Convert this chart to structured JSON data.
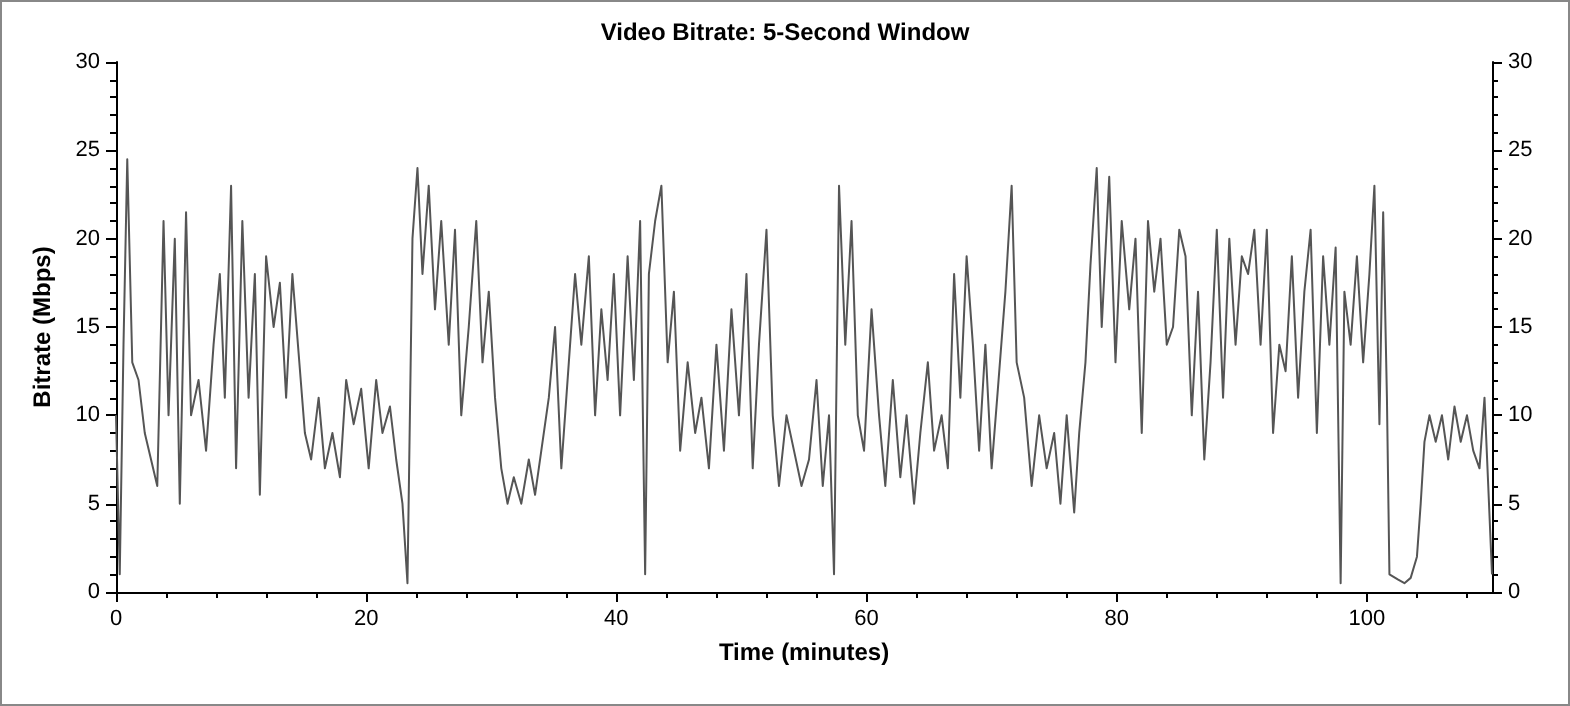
{
  "chart_data": {
    "type": "line",
    "title": "Video Bitrate: 5-Second Window",
    "xlabel": "Time (minutes)",
    "ylabel": "Bitrate (Mbps)",
    "xlim": [
      0,
      110
    ],
    "xticks": [
      0,
      20,
      40,
      60,
      80,
      100
    ],
    "ylim": [
      0,
      30
    ],
    "yticks": [
      0,
      5,
      10,
      15,
      20,
      25,
      30
    ],
    "y2lim": [
      0,
      30
    ],
    "y2ticks": [
      0,
      5,
      10,
      15,
      20,
      25,
      30
    ],
    "grid": false,
    "marker": "none",
    "line_style": "solid",
    "series": [
      {
        "color": "#555555",
        "x": [
          0,
          0.3,
          0.6,
          0.9,
          1.3,
          1.8,
          2.3,
          2.8,
          3.3,
          3.8,
          4.2,
          4.7,
          5.1,
          5.6,
          6,
          6.6,
          7.2,
          7.8,
          8.3,
          8.7,
          9.2,
          9.6,
          10.1,
          10.6,
          11.1,
          11.5,
          12,
          12.6,
          13.1,
          13.6,
          14.1,
          14.6,
          15.1,
          15.6,
          16.2,
          16.7,
          17.3,
          17.9,
          18.4,
          19,
          19.6,
          20.2,
          20.8,
          21.3,
          21.9,
          22.4,
          22.9,
          23.3,
          23.7,
          24.1,
          24.5,
          25,
          25.5,
          26,
          26.6,
          27.1,
          27.6,
          28.2,
          28.8,
          29.3,
          29.8,
          30.3,
          30.8,
          31.3,
          31.8,
          32.4,
          33,
          33.5,
          34,
          34.6,
          35.1,
          35.6,
          36.2,
          36.7,
          37.2,
          37.8,
          38.3,
          38.8,
          39.3,
          39.8,
          40.3,
          40.9,
          41.4,
          41.9,
          42.3,
          42.6,
          43.1,
          43.6,
          44.1,
          44.6,
          45.1,
          45.7,
          46.3,
          46.8,
          47.4,
          48,
          48.6,
          49.2,
          49.8,
          50.4,
          50.9,
          51.4,
          52,
          52.5,
          53,
          53.6,
          54.2,
          54.8,
          55.4,
          56,
          56.5,
          57,
          57.4,
          57.8,
          58.3,
          58.8,
          59.3,
          59.8,
          60.4,
          61,
          61.5,
          62.1,
          62.7,
          63.2,
          63.8,
          64.3,
          64.9,
          65.4,
          66,
          66.5,
          67,
          67.5,
          68,
          68.5,
          69,
          69.5,
          70,
          70.5,
          71.1,
          71.6,
          72,
          72.6,
          73.2,
          73.8,
          74.4,
          75,
          75.5,
          76,
          76.6,
          77,
          77.5,
          77.9,
          78.4,
          78.8,
          79.4,
          79.9,
          80.4,
          81,
          81.5,
          82,
          82.5,
          83,
          83.5,
          84,
          84.5,
          85,
          85.5,
          86,
          86.5,
          87,
          87.5,
          88,
          88.5,
          89,
          89.5,
          90,
          90.5,
          91,
          91.5,
          92,
          92.5,
          93,
          93.5,
          94,
          94.5,
          95,
          95.5,
          96,
          96.5,
          97,
          97.5,
          97.9,
          98.2,
          98.7,
          99.2,
          99.7,
          100.2,
          100.6,
          101,
          101.3,
          101.6,
          101.8,
          102.5,
          103,
          103.5,
          104,
          104.3,
          104.6,
          105,
          105.5,
          106,
          106.5,
          107,
          107.5,
          108,
          108.5,
          109,
          109.4,
          109.7,
          110
        ],
        "values": [
          10,
          1,
          14,
          24.5,
          13,
          12,
          9,
          7.5,
          6,
          21,
          10,
          20,
          5,
          21.5,
          10,
          12,
          8,
          14,
          18,
          11,
          23,
          7,
          21,
          11,
          18,
          5.5,
          19,
          15,
          17.5,
          11,
          18,
          13.5,
          9,
          7.5,
          11,
          7,
          9,
          6.5,
          12,
          9.5,
          11.5,
          7,
          12,
          9,
          10.5,
          7.5,
          5,
          0.5,
          20,
          24,
          18,
          23,
          16,
          21,
          14,
          20.5,
          10,
          15,
          21,
          13,
          17,
          11,
          7,
          5,
          6.5,
          5,
          7.5,
          5.5,
          8,
          11,
          15,
          7,
          13,
          18,
          14,
          19,
          10,
          16,
          12,
          18,
          10,
          19,
          12,
          21,
          1,
          18,
          21,
          23,
          13,
          17,
          8,
          13,
          9,
          11,
          7,
          14,
          8,
          16,
          10,
          18,
          7,
          14,
          20.5,
          10,
          6,
          10,
          8,
          6,
          7.5,
          12,
          6,
          10,
          1,
          23,
          14,
          21,
          10,
          8,
          16,
          10,
          6,
          12,
          6.5,
          10,
          5,
          9,
          13,
          8,
          10,
          7,
          18,
          11,
          19,
          14,
          8,
          14,
          7,
          11.5,
          17,
          23,
          13,
          11,
          6,
          10,
          7,
          9,
          5,
          10,
          4.5,
          9,
          13,
          18.5,
          24,
          15,
          23.5,
          13,
          21,
          16,
          20,
          9,
          21,
          17,
          20,
          14,
          15,
          20.5,
          19,
          10,
          17,
          7.5,
          13,
          20.5,
          11,
          20,
          14,
          19,
          18,
          20.5,
          14,
          20.5,
          9,
          14,
          12.5,
          19,
          11,
          17,
          20.5,
          9,
          19,
          14,
          19.5,
          0.5,
          17,
          14,
          19,
          13,
          18,
          23,
          9.5,
          21.5,
          11,
          1,
          0.7,
          0.5,
          0.8,
          2,
          5,
          8.5,
          10,
          8.5,
          10,
          7.5,
          10.5,
          8.5,
          10,
          8,
          7,
          11,
          6,
          1
        ]
      }
    ]
  }
}
